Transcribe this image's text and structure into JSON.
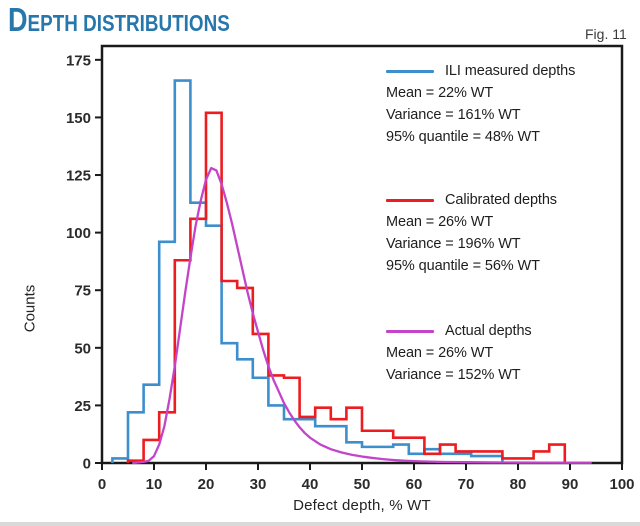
{
  "header": {
    "title": "Depth distributions",
    "fig_label": "Fig. 11"
  },
  "colors": {
    "title_blue": "#2777ac",
    "ili_blue": "#3d8ecd",
    "calibrated_red": "#ec1c20",
    "actual_magenta": "#c344c9",
    "axis": "#1a1a1a",
    "tick_text": "#2b2b2b"
  },
  "chart_data": {
    "type": "bar",
    "subtype": "step-histogram-with-curve",
    "title": "Depth distributions",
    "xlabel": "Defect depth, % WT",
    "ylabel": "Counts",
    "xlim": [
      0,
      100
    ],
    "ylim": [
      0,
      181
    ],
    "x_ticks": [
      0,
      10,
      20,
      30,
      40,
      50,
      60,
      70,
      80,
      90,
      100
    ],
    "y_ticks": [
      0,
      25,
      50,
      75,
      100,
      125,
      150,
      175
    ],
    "grid": false,
    "legend_position": "inside-right",
    "series": [
      {
        "name": "ILI measured depths",
        "kind": "step",
        "color": "#3d8ecd",
        "bin_start": 2,
        "bin_width": 3,
        "counts": [
          2,
          22,
          34,
          96,
          166,
          113,
          103,
          52,
          45,
          37,
          25,
          19,
          19,
          16,
          16,
          9,
          7,
          7,
          8,
          4,
          6,
          4,
          4,
          3,
          3
        ]
      },
      {
        "name": "Calibrated depths",
        "kind": "step",
        "color": "#ec1c20",
        "bin_start": 5,
        "bin_width": 3,
        "counts": [
          1,
          10,
          22,
          88,
          106,
          152,
          79,
          76,
          56,
          38,
          37,
          20,
          24,
          19,
          24,
          14,
          14,
          11,
          11,
          4,
          8,
          5,
          5,
          5,
          2,
          2,
          5,
          8
        ]
      },
      {
        "name": "Actual depths",
        "kind": "curve",
        "color": "#c344c9",
        "points": [
          [
            6,
            0
          ],
          [
            8,
            0.5
          ],
          [
            9,
            1
          ],
          [
            10,
            3
          ],
          [
            11,
            8
          ],
          [
            12,
            16
          ],
          [
            13,
            28
          ],
          [
            14,
            42
          ],
          [
            15,
            58
          ],
          [
            16,
            74
          ],
          [
            17,
            89
          ],
          [
            18,
            103
          ],
          [
            19,
            114
          ],
          [
            20,
            123
          ],
          [
            21,
            128
          ],
          [
            22,
            127
          ],
          [
            23,
            121
          ],
          [
            24,
            113
          ],
          [
            25,
            104
          ],
          [
            26,
            94
          ],
          [
            27,
            84
          ],
          [
            28,
            74
          ],
          [
            29,
            65
          ],
          [
            30,
            57
          ],
          [
            31,
            49
          ],
          [
            32,
            42
          ],
          [
            33,
            36
          ],
          [
            34,
            31
          ],
          [
            35,
            26
          ],
          [
            36,
            22
          ],
          [
            37,
            18.5
          ],
          [
            38,
            15.5
          ],
          [
            39,
            13
          ],
          [
            40,
            11
          ],
          [
            42,
            8
          ],
          [
            44,
            6
          ],
          [
            46,
            4.6
          ],
          [
            48,
            3.6
          ],
          [
            50,
            2.8
          ],
          [
            52,
            2.2
          ],
          [
            54,
            1.7
          ],
          [
            56,
            1.3
          ],
          [
            58,
            1
          ],
          [
            60,
            0.8
          ],
          [
            63,
            0.6
          ],
          [
            66,
            0.45
          ],
          [
            70,
            0.35
          ],
          [
            75,
            0.25
          ],
          [
            80,
            0.2
          ],
          [
            85,
            0.15
          ],
          [
            90,
            0.1
          ],
          [
            94,
            0.1
          ]
        ]
      }
    ]
  },
  "legend": {
    "blocks": [
      {
        "label": "ILI measured depths",
        "color": "#3d8ecd",
        "stats": [
          "Mean = 22% WT",
          "Variance = 161% WT",
          "95% quantile = 48% WT"
        ]
      },
      {
        "label": "Calibrated depths",
        "color": "#ec1c20",
        "stats": [
          "Mean = 26% WT",
          "Variance = 196% WT",
          "95% quantile = 56% WT"
        ]
      },
      {
        "label": "Actual depths",
        "color": "#c344c9",
        "stats": [
          "Mean = 26% WT",
          "Variance = 152% WT"
        ]
      }
    ]
  }
}
